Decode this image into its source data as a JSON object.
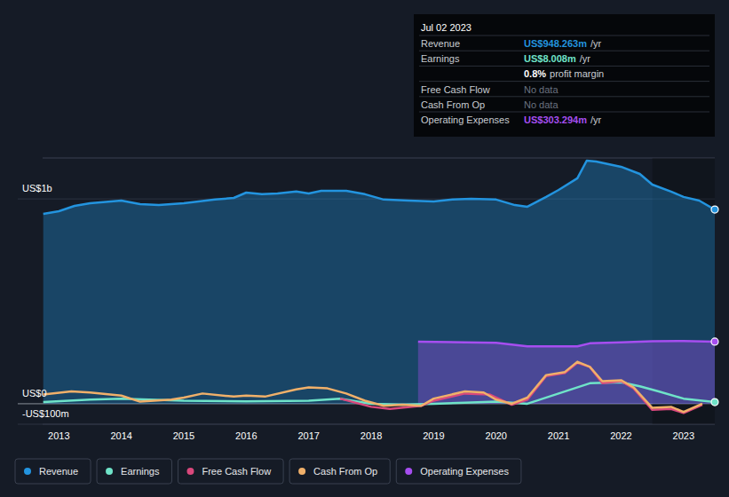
{
  "chart_data": {
    "type": "line",
    "xlim": [
      2012.74,
      2023.5
    ],
    "xticks": [
      2013,
      2014,
      2015,
      2016,
      2017,
      2018,
      2019,
      2020,
      2021,
      2022,
      2023
    ],
    "ylim": [
      -100,
      1200
    ],
    "yticks": [
      {
        "value": -100,
        "label": "-US$100m"
      },
      {
        "value": 0,
        "label": "US$0"
      },
      {
        "value": 1000,
        "label": "US$1b"
      }
    ],
    "grid": true,
    "legend": "bottom",
    "highlight_range": [
      2022.5,
      2023.5
    ],
    "series": [
      {
        "name": "Revenue",
        "type": "area",
        "color": "#2394df",
        "x": [
          2012.75,
          2013,
          2013.25,
          2013.5,
          2014,
          2014.3,
          2014.6,
          2015,
          2015.5,
          2015.8,
          2016,
          2016.25,
          2016.5,
          2016.8,
          2017,
          2017.2,
          2017.6,
          2017.9,
          2018.2,
          2018.6,
          2019,
          2019.3,
          2019.6,
          2020,
          2020.3,
          2020.5,
          2020.8,
          2021,
          2021.3,
          2021.45,
          2021.6,
          2022,
          2022.3,
          2022.5,
          2022.8,
          2023,
          2023.25,
          2023.5
        ],
        "values": [
          927,
          940,
          966,
          979,
          992,
          975,
          970,
          979,
          997,
          1005,
          1031,
          1023,
          1027,
          1036,
          1027,
          1040,
          1040,
          1023,
          997,
          992,
          988,
          997,
          1001,
          997,
          970,
          962,
          1010,
          1044,
          1101,
          1187,
          1183,
          1157,
          1122,
          1070,
          1036,
          1010,
          992,
          948.263
        ]
      },
      {
        "name": "Earnings",
        "type": "line",
        "color": "#6fe3c8",
        "x": [
          2012.75,
          2013.5,
          2014,
          2015,
          2016,
          2017,
          2017.5,
          2018,
          2018.5,
          2019,
          2019.5,
          2020,
          2020.5,
          2021,
          2021.5,
          2022,
          2022.3,
          2022.6,
          2023,
          2023.5
        ],
        "values": [
          8,
          20,
          25,
          15,
          12,
          15,
          25,
          0,
          -5,
          0,
          5,
          10,
          0,
          50,
          100,
          105,
          85,
          60,
          25,
          8.008
        ]
      },
      {
        "name": "Free Cash Flow",
        "type": "line",
        "color": "#d9487c",
        "x": [
          2017.5,
          2018,
          2018.3,
          2018.8,
          2019,
          2019.5,
          2019.9,
          2020.25,
          2020.5,
          2020.8,
          2021.1,
          2021.3,
          2021.5,
          2021.7,
          2022,
          2022.2,
          2022.5,
          2022.8,
          2023,
          2023.3
        ],
        "values": [
          25,
          -15,
          -25,
          -10,
          15,
          50,
          45,
          -5,
          20,
          135,
          150,
          200,
          180,
          100,
          110,
          75,
          -30,
          -25,
          -45,
          -5
        ]
      },
      {
        "name": "Cash From Op",
        "type": "line",
        "color": "#f0b06a",
        "x": [
          2012.75,
          2013.2,
          2013.5,
          2014,
          2014.3,
          2014.8,
          2015,
          2015.3,
          2015.8,
          2016,
          2016.3,
          2016.8,
          2017,
          2017.3,
          2017.6,
          2017.9,
          2018.2,
          2018.5,
          2018.8,
          2019,
          2019.5,
          2019.8,
          2020,
          2020.25,
          2020.5,
          2020.8,
          2021.1,
          2021.3,
          2021.5,
          2021.7,
          2022,
          2022.2,
          2022.5,
          2022.8,
          2023,
          2023.3
        ],
        "values": [
          45,
          60,
          55,
          40,
          10,
          20,
          30,
          50,
          35,
          40,
          35,
          70,
          80,
          75,
          50,
          15,
          -10,
          -5,
          -10,
          25,
          60,
          55,
          20,
          0,
          30,
          140,
          155,
          205,
          180,
          110,
          115,
          80,
          -20,
          -15,
          -40,
          0
        ]
      },
      {
        "name": "Operating Expenses",
        "type": "area",
        "color": "#a64ef0",
        "x": [
          2018.75,
          2019.5,
          2020,
          2020.5,
          2021,
          2021.3,
          2021.5,
          2022,
          2022.5,
          2023,
          2023.5
        ],
        "values": [
          303,
          300,
          298,
          280,
          280,
          280,
          295,
          300,
          305,
          306,
          303.294
        ]
      }
    ],
    "tooltip": {
      "date": "Jul 02 2023",
      "rows": [
        {
          "label": "Revenue",
          "value": "US$948.263m",
          "suffix": "/yr",
          "color": "#2394df"
        },
        {
          "label": "Earnings",
          "value": "US$8.008m",
          "suffix": "/yr",
          "color": "#6fe3c8"
        },
        {
          "value": "0.8%",
          "suffix": "profit margin",
          "color": "#ffffff"
        },
        {
          "label": "Free Cash Flow",
          "value": "No data",
          "color": "#6b7280"
        },
        {
          "label": "Cash From Op",
          "value": "No data",
          "color": "#6b7280"
        },
        {
          "label": "Operating Expenses",
          "value": "US$303.294m",
          "suffix": "/yr",
          "color": "#a64ef0"
        }
      ]
    }
  }
}
